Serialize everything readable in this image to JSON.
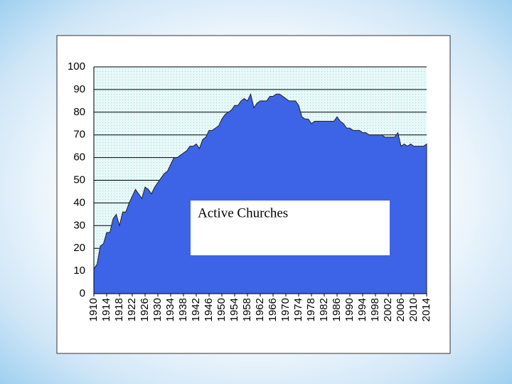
{
  "chart_data": {
    "type": "area",
    "annotation": "Active Churches",
    "color": "#3d63e6",
    "x": [
      1910,
      1911,
      1912,
      1913,
      1914,
      1915,
      1916,
      1917,
      1918,
      1919,
      1920,
      1921,
      1922,
      1923,
      1924,
      1925,
      1926,
      1927,
      1928,
      1929,
      1930,
      1931,
      1932,
      1933,
      1934,
      1935,
      1936,
      1937,
      1938,
      1939,
      1940,
      1941,
      1942,
      1943,
      1944,
      1945,
      1946,
      1947,
      1948,
      1949,
      1950,
      1951,
      1952,
      1953,
      1954,
      1955,
      1956,
      1957,
      1958,
      1959,
      1960,
      1961,
      1962,
      1963,
      1964,
      1965,
      1966,
      1967,
      1968,
      1969,
      1970,
      1971,
      1972,
      1973,
      1974,
      1975,
      1976,
      1977,
      1978,
      1979,
      1980,
      1981,
      1982,
      1983,
      1984,
      1985,
      1986,
      1987,
      1988,
      1989,
      1990,
      1991,
      1992,
      1993,
      1994,
      1995,
      1996,
      1997,
      1998,
      1999,
      2000,
      2001,
      2002,
      2003,
      2004,
      2005,
      2006,
      2007,
      2008,
      2009,
      2010,
      2011,
      2012,
      2013,
      2014
    ],
    "values": [
      11,
      13,
      21,
      22,
      27,
      27,
      33,
      35,
      30,
      36,
      36,
      40,
      43,
      46,
      44,
      42,
      47,
      46,
      44,
      47,
      49,
      51,
      53,
      54,
      57,
      60,
      60,
      61,
      62,
      63,
      65,
      65,
      66,
      64,
      68,
      69,
      72,
      72,
      73,
      74,
      77,
      79,
      80,
      81,
      83,
      83,
      85,
      86,
      85,
      88,
      82,
      84,
      85,
      85,
      85,
      87,
      87,
      88,
      88,
      87,
      86,
      85,
      85,
      85,
      83,
      78,
      77,
      77,
      75,
      76,
      76,
      76,
      76,
      76,
      76,
      76,
      78,
      76,
      75,
      73,
      73,
      72,
      72,
      72,
      71,
      71,
      70,
      70,
      70,
      70,
      70,
      69,
      69,
      69,
      69,
      71,
      65,
      66,
      65,
      66,
      65,
      65,
      65,
      65,
      66
    ],
    "xlim": [
      1910,
      2014
    ],
    "xticks": [
      1910,
      1914,
      1918,
      1922,
      1926,
      1930,
      1934,
      1938,
      1942,
      1946,
      1950,
      1954,
      1958,
      1962,
      1966,
      1970,
      1974,
      1978,
      1982,
      1986,
      1990,
      1994,
      1998,
      2002,
      2006,
      2010,
      2014
    ],
    "ylim": [
      0,
      100
    ],
    "yticks": [
      0,
      10,
      20,
      30,
      40,
      50,
      60,
      70,
      80,
      90,
      100
    ],
    "grid": true
  }
}
